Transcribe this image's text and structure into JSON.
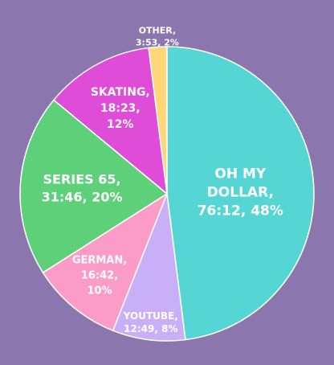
{
  "background": "#8b77ad",
  "chart_data": {
    "type": "pie",
    "title": "",
    "start_angle_deg": 0,
    "direction": "clockwise",
    "slices": [
      {
        "name": "OH MY DOLLAR",
        "time": "76:12",
        "percent": 48,
        "color": "#55d6d4",
        "label_lines": [
          "OH MY",
          "DOLLAR,",
          "76:12, 48%"
        ]
      },
      {
        "name": "YOUTUBE",
        "time": "12:49",
        "percent": 8,
        "color": "#c9aff7",
        "label_lines": [
          "YOUTUBE,",
          "12:49, 8%"
        ]
      },
      {
        "name": "GERMAN",
        "time": "16:42",
        "percent": 10,
        "color": "#fb9cc8",
        "label_lines": [
          "GERMAN,",
          "16:42,",
          "10%"
        ]
      },
      {
        "name": "SERIES 65",
        "time": "31:46",
        "percent": 20,
        "color": "#5ed07a",
        "label_lines": [
          "SERIES 65,",
          "31:46, 20%"
        ]
      },
      {
        "name": "SKATING",
        "time": "18:23",
        "percent": 12,
        "color": "#df4cd7",
        "label_lines": [
          "SKATING,",
          "18:23,",
          "12%"
        ]
      },
      {
        "name": "OTHER",
        "time": "3:53",
        "percent": 2,
        "color": "#ffd777",
        "label_lines": [
          "OTHER,",
          "3:53, 2%"
        ]
      }
    ]
  }
}
